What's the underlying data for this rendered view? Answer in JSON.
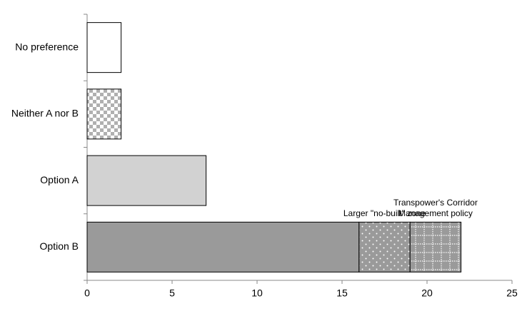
{
  "chart_data": {
    "type": "stacked-hbar",
    "categories": [
      "No preference",
      "Neither A nor B",
      "Option A",
      "Option B"
    ],
    "series": [
      {
        "values": [
          2,
          2,
          7,
          16
        ],
        "colors": [
          "#ffffff",
          "#c4c4c4",
          "#d2d2d2",
          "#9a9a9a"
        ],
        "patterns": [
          "none",
          "checker",
          "none",
          "none"
        ]
      },
      {
        "name": "Larger \"no-built\" zone",
        "values": [
          null,
          null,
          null,
          3
        ],
        "color": "#9a9a9a",
        "pattern": "dots"
      },
      {
        "name": "Transpower's Corridor Management policy",
        "values": [
          null,
          null,
          null,
          3
        ],
        "color": "#9a9a9a",
        "pattern": "grid"
      }
    ],
    "xlim": [
      0,
      25
    ],
    "xticks": [
      0,
      5,
      10,
      15,
      20,
      25
    ],
    "grid": false
  }
}
